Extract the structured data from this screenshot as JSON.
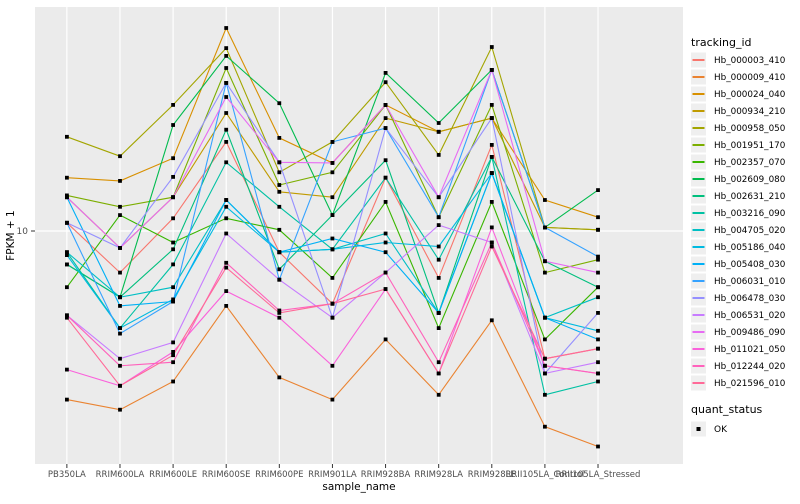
{
  "figure": {
    "background": "#ffffff",
    "panel_background": "#ebebeb",
    "grid_color": "#ffffff",
    "tick_text_color": "#4d4d4d",
    "point_color": "#000000"
  },
  "chart_data": {
    "type": "line",
    "title": "",
    "xlabel": "sample_name",
    "ylabel": "FPKM + 1",
    "y_scale": "log10",
    "ylim": [
      1.5,
      60
    ],
    "y_ticks": [
      10
    ],
    "y_tick_labels": [
      "10"
    ],
    "grid": "major-on",
    "legend_position": "right",
    "categories": [
      "PB350LA",
      "RRIM600LA",
      "RRIM600LE",
      "RRIM600SE",
      "RRIM600PE",
      "RRIM901LA",
      "RRIM928BA",
      "RRIM928LA",
      "RRIM928LE",
      "RRII105LA_Control",
      "RRII105LA_Stressed"
    ],
    "legend_title": "tracking_id",
    "series": [
      {
        "name": "Hb_000003_410",
        "color": "#F8766D",
        "values": [
          10.7,
          7.1,
          11.1,
          20.8,
          8.4,
          5.5,
          15.5,
          6.8,
          20.3,
          3.5,
          3.8
        ]
      },
      {
        "name": "Hb_000009_410",
        "color": "#EA8331",
        "values": [
          2.5,
          2.3,
          2.9,
          5.4,
          3.0,
          2.5,
          4.1,
          2.6,
          4.8,
          2.0,
          1.7
        ]
      },
      {
        "name": "Hb_000024_040",
        "color": "#D89000",
        "values": [
          15.5,
          15.1,
          18.2,
          53.1,
          21.5,
          17.5,
          28.2,
          22.6,
          25.3,
          12.9,
          11.2
        ]
      },
      {
        "name": "Hb_000934_210",
        "color": "#C09B00",
        "values": [
          13.2,
          8.7,
          13.2,
          26.4,
          13.8,
          13.2,
          25.3,
          22.6,
          25.3,
          10.3,
          10.1
        ]
      },
      {
        "name": "Hb_000958_050",
        "color": "#A3A500",
        "values": [
          21.7,
          18.5,
          28.2,
          45.0,
          16.2,
          20.8,
          34.0,
          18.7,
          45.4,
          10.3,
          10.1
        ]
      },
      {
        "name": "Hb_001951_170",
        "color": "#7CAE00",
        "values": [
          13.4,
          12.2,
          13.2,
          38.2,
          14.6,
          16.2,
          28.2,
          11.2,
          28.2,
          7.1,
          7.9
        ]
      },
      {
        "name": "Hb_002357_070",
        "color": "#39B600",
        "values": [
          6.3,
          11.4,
          9.1,
          11.1,
          10.1,
          6.8,
          12.7,
          4.5,
          12.7,
          4.1,
          6.3
        ]
      },
      {
        "name": "Hb_002609_080",
        "color": "#00BB4E",
        "values": [
          7.6,
          5.8,
          23.9,
          42.2,
          28.6,
          11.4,
          36.7,
          24.3,
          37.6,
          10.3,
          14.0
        ]
      },
      {
        "name": "Hb_002631_210",
        "color": "#00BF7D",
        "values": [
          7.6,
          5.8,
          8.6,
          23.0,
          7.3,
          11.4,
          17.9,
          5.1,
          18.4,
          7.8,
          6.3
        ]
      },
      {
        "name": "Hb_003216_090",
        "color": "#00C1A3",
        "values": [
          8.4,
          4.5,
          7.6,
          17.6,
          12.2,
          8.6,
          15.5,
          7.9,
          18.4,
          2.6,
          2.9
        ]
      },
      {
        "name": "Hb_004705_020",
        "color": "#00BFC4",
        "values": [
          8.4,
          5.8,
          6.3,
          12.9,
          8.4,
          8.6,
          9.8,
          5.1,
          16.1,
          4.9,
          5.8
        ]
      },
      {
        "name": "Hb_005186_040",
        "color": "#00BAE0",
        "values": [
          8.2,
          4.5,
          5.7,
          12.2,
          8.4,
          8.6,
          9.1,
          8.8,
          16.1,
          4.9,
          4.4
        ]
      },
      {
        "name": "Hb_005408_030",
        "color": "#00B0F6",
        "values": [
          13.2,
          5.4,
          5.6,
          12.9,
          8.4,
          9.4,
          8.4,
          5.1,
          16.1,
          4.9,
          4.1
        ]
      },
      {
        "name": "Hb_006031_010",
        "color": "#35A2FF",
        "values": [
          10.7,
          4.3,
          5.6,
          33.8,
          6.7,
          20.8,
          23.3,
          11.2,
          37.6,
          10.3,
          8.1
        ]
      },
      {
        "name": "Hb_006478_030",
        "color": "#9590FF",
        "values": [
          10.7,
          8.7,
          15.6,
          33.8,
          17.6,
          4.9,
          23.3,
          13.2,
          25.3,
          3.1,
          5.1
        ]
      },
      {
        "name": "Hb_006531_020",
        "color": "#C77CFF",
        "values": [
          5.0,
          3.5,
          4.0,
          9.8,
          6.7,
          4.9,
          7.1,
          10.5,
          9.1,
          3.1,
          3.4
        ]
      },
      {
        "name": "Hb_009486_090",
        "color": "#E76BF3",
        "values": [
          13.2,
          8.7,
          13.2,
          30.1,
          17.6,
          17.5,
          28.2,
          13.2,
          37.6,
          7.8,
          7.1
        ]
      },
      {
        "name": "Hb_011021_050",
        "color": "#FA62DB",
        "values": [
          3.2,
          2.8,
          3.7,
          6.1,
          4.9,
          3.3,
          6.2,
          3.1,
          10.3,
          3.3,
          3.1
        ]
      },
      {
        "name": "Hb_012244_020",
        "color": "#FF62BC",
        "values": [
          5.0,
          3.3,
          3.4,
          7.7,
          5.2,
          5.5,
          7.1,
          3.4,
          9.1,
          3.3,
          3.1
        ]
      },
      {
        "name": "Hb_021596_010",
        "color": "#FF6A98",
        "values": [
          4.9,
          2.8,
          3.6,
          7.4,
          5.1,
          5.5,
          6.2,
          3.1,
          8.8,
          3.5,
          3.8
        ]
      }
    ],
    "legend2": {
      "title": "quant_status",
      "items": [
        {
          "label": "OK",
          "marker": "black-square"
        }
      ]
    }
  }
}
